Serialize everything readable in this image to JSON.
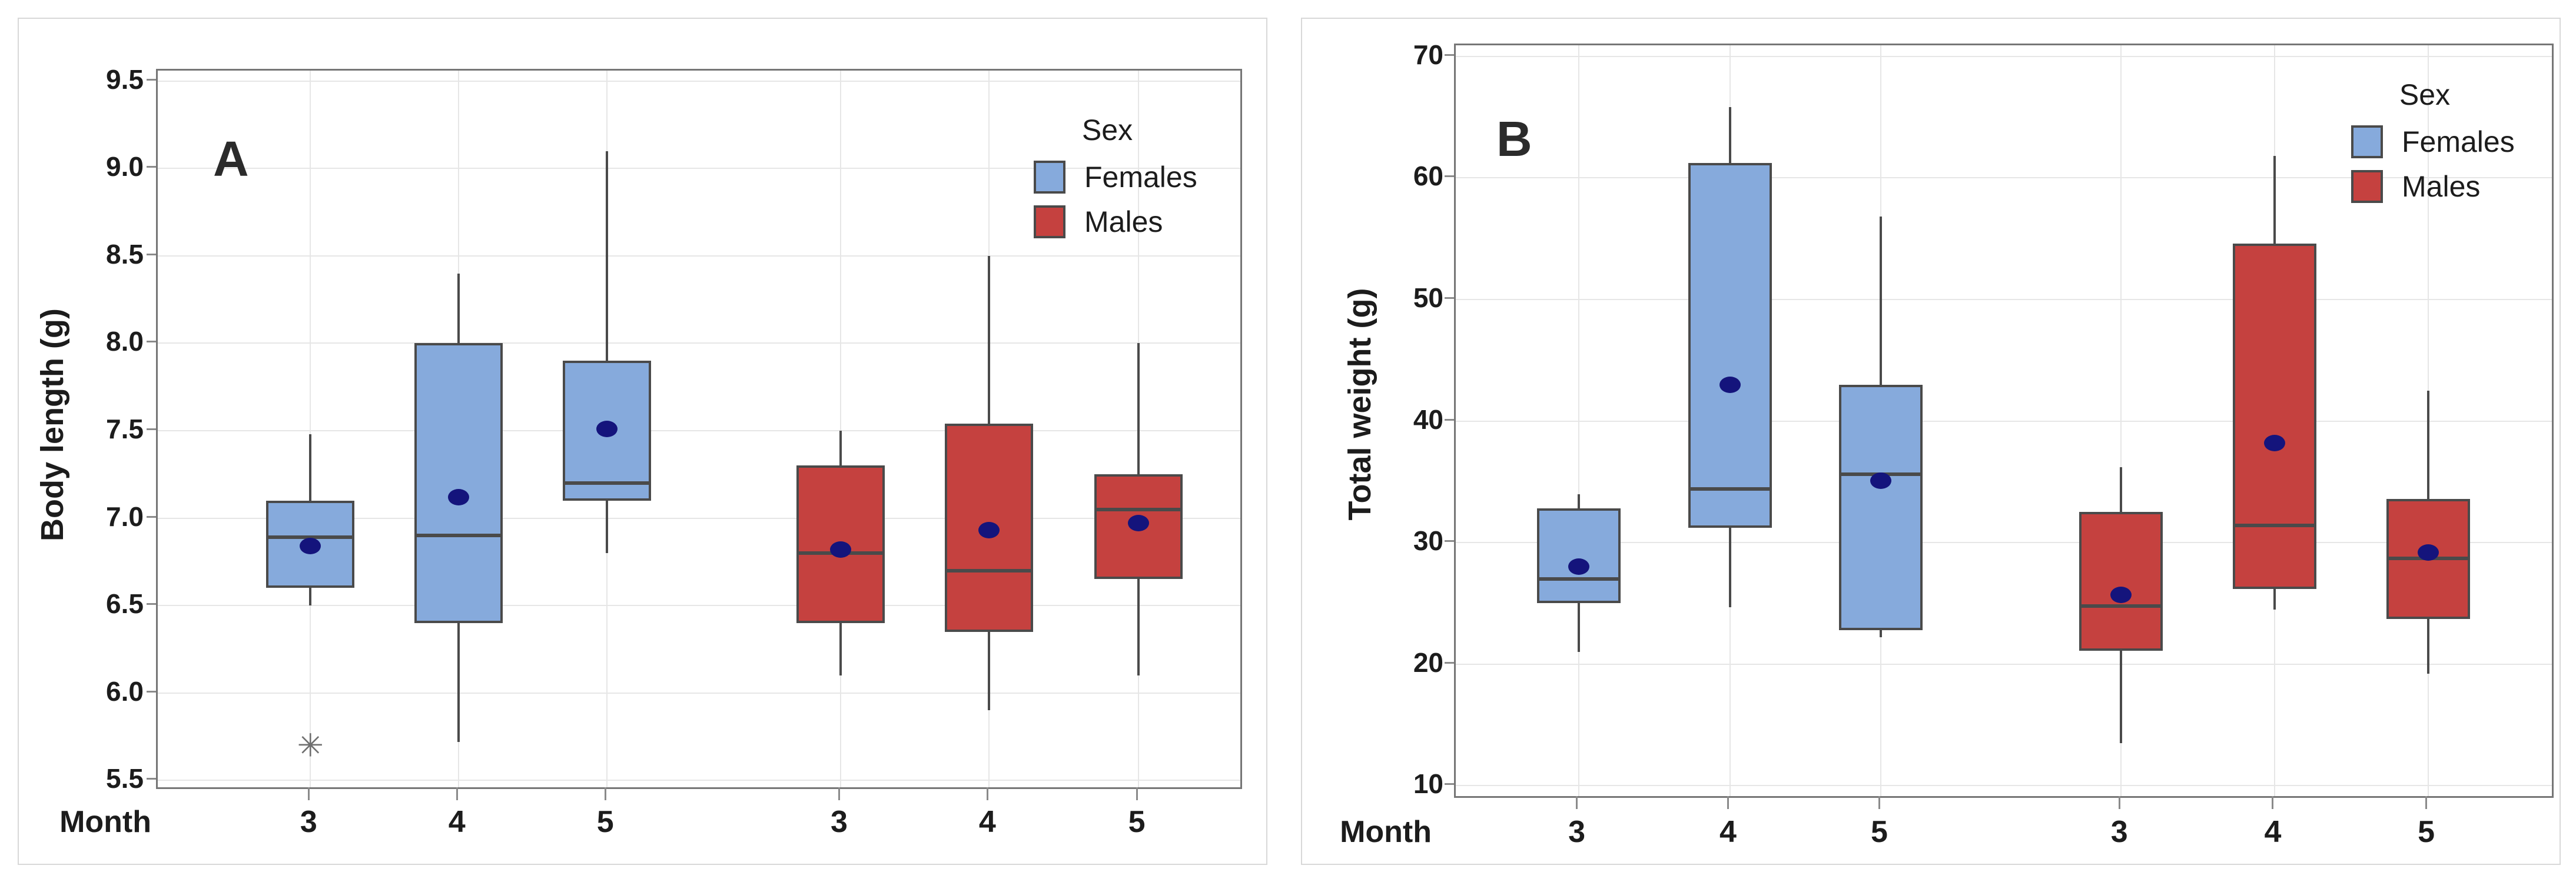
{
  "figure": {
    "background": "#ffffff",
    "text_color": "#1c1c1c"
  },
  "colors": {
    "females_fill": "#86aadc",
    "males_fill": "#c5413f",
    "box_border": "#4a4a4a",
    "median_line": "#4a4a4a",
    "mean_dot": "#14147c",
    "outlier": "#6f6f6f",
    "gridline": "#e6e6e6",
    "plot_border": "#767676",
    "card_border": "#d8d8d8"
  },
  "legend": {
    "title": "Sex",
    "items": [
      {
        "label": "Females",
        "color": "#86aadc"
      },
      {
        "label": "Males",
        "color": "#c5413f"
      }
    ]
  },
  "chart_data": [
    {
      "type": "box",
      "panel_label": "A",
      "ylabel": "Body length (g)",
      "xlabel": "Month",
      "x_tick_labels": [
        "3",
        "4",
        "5",
        "3",
        "4",
        "5"
      ],
      "ylim": [
        5.46,
        9.56
      ],
      "y_ticks": [
        {
          "v": 9.5,
          "label": "9.5"
        },
        {
          "v": 9.0,
          "label": "9.0"
        },
        {
          "v": 8.5,
          "label": "8.5"
        },
        {
          "v": 8.0,
          "label": "8.0"
        },
        {
          "v": 7.5,
          "label": "7.5"
        },
        {
          "v": 7.0,
          "label": "7.0"
        },
        {
          "v": 6.5,
          "label": "6.5"
        },
        {
          "v": 6.0,
          "label": "6.0"
        },
        {
          "v": 5.5,
          "label": "5.5"
        }
      ],
      "grid": true,
      "legend_position": "top-right-inside",
      "series": [
        {
          "name": "Females",
          "boxes": [
            {
              "category": "3",
              "low": 6.5,
              "q1": 6.6,
              "median": 6.89,
              "q3": 7.1,
              "high": 7.48,
              "mean": 6.84,
              "outliers": [
                5.7
              ]
            },
            {
              "category": "4",
              "low": 5.72,
              "q1": 6.4,
              "median": 6.9,
              "q3": 8.0,
              "high": 8.4,
              "mean": 7.12,
              "outliers": []
            },
            {
              "category": "5",
              "low": 6.8,
              "q1": 7.1,
              "median": 7.2,
              "q3": 7.9,
              "high": 9.1,
              "mean": 7.51,
              "outliers": []
            }
          ]
        },
        {
          "name": "Males",
          "boxes": [
            {
              "category": "3",
              "low": 6.1,
              "q1": 6.4,
              "median": 6.8,
              "q3": 7.3,
              "high": 7.5,
              "mean": 6.82,
              "outliers": []
            },
            {
              "category": "4",
              "low": 5.9,
              "q1": 6.35,
              "median": 6.7,
              "q3": 7.54,
              "high": 8.5,
              "mean": 6.93,
              "outliers": []
            },
            {
              "category": "5",
              "low": 6.1,
              "q1": 6.65,
              "median": 7.05,
              "q3": 7.25,
              "high": 8.0,
              "mean": 6.97,
              "outliers": []
            }
          ]
        }
      ]
    },
    {
      "type": "box",
      "panel_label": "B",
      "ylabel": "Total weight (g)",
      "xlabel": "Month",
      "x_tick_labels": [
        "3",
        "4",
        "5",
        "3",
        "4",
        "5"
      ],
      "ylim": [
        9.15,
        70.9
      ],
      "y_ticks": [
        {
          "v": 70,
          "label": "70"
        },
        {
          "v": 60,
          "label": "60"
        },
        {
          "v": 50,
          "label": "50"
        },
        {
          "v": 40,
          "label": "40"
        },
        {
          "v": 30,
          "label": "30"
        },
        {
          "v": 20,
          "label": "20"
        },
        {
          "v": 10,
          "label": "10"
        }
      ],
      "grid": true,
      "legend_position": "top-right-inside",
      "series": [
        {
          "name": "Females",
          "boxes": [
            {
              "category": "3",
              "low": 21.0,
              "q1": 25.0,
              "median": 27.0,
              "q3": 32.8,
              "high": 34.0,
              "mean": 28.0,
              "outliers": []
            },
            {
              "category": "4",
              "low": 24.7,
              "q1": 31.2,
              "median": 34.4,
              "q3": 61.2,
              "high": 65.8,
              "mean": 43.0,
              "outliers": []
            },
            {
              "category": "5",
              "low": 22.2,
              "q1": 22.8,
              "median": 35.6,
              "q3": 43.0,
              "high": 56.8,
              "mean": 35.1,
              "outliers": []
            }
          ]
        },
        {
          "name": "Males",
          "boxes": [
            {
              "category": "3",
              "low": 13.5,
              "q1": 21.1,
              "median": 24.8,
              "q3": 32.5,
              "high": 36.2,
              "mean": 25.7,
              "outliers": []
            },
            {
              "category": "4",
              "low": 24.5,
              "q1": 26.2,
              "median": 31.4,
              "q3": 54.6,
              "high": 61.8,
              "mean": 38.2,
              "outliers": []
            },
            {
              "category": "5",
              "low": 19.2,
              "q1": 23.7,
              "median": 28.7,
              "q3": 33.6,
              "high": 42.5,
              "mean": 29.2,
              "outliers": []
            }
          ]
        }
      ]
    }
  ]
}
